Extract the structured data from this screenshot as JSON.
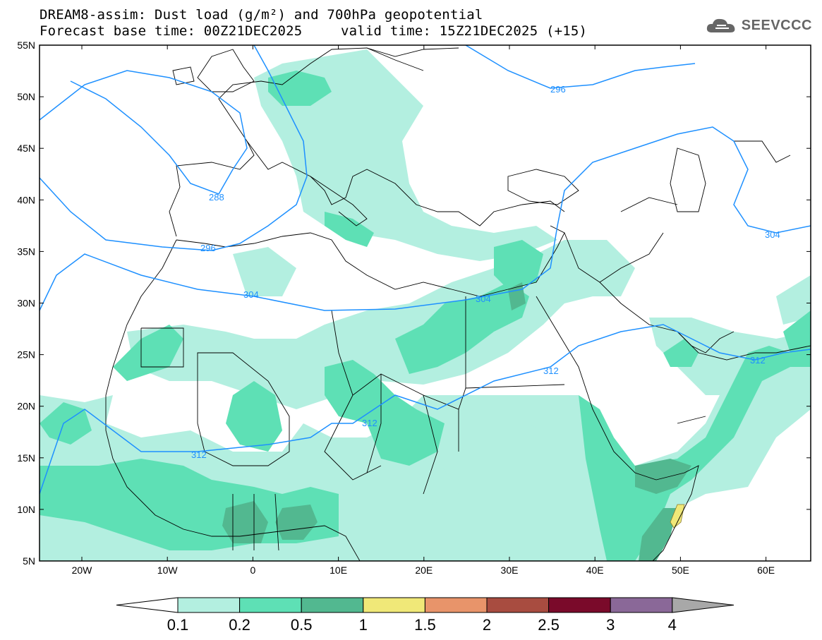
{
  "header": {
    "title_line1": "DREAM8-assim: Dust load (g/m²) and 700hPa geopotential",
    "title_line2_left": "Forecast base time: 00Z21DEC2025",
    "title_line2_right": "valid time: 15Z21DEC2025 (+15)",
    "logo_text": "SEEVCCC"
  },
  "map": {
    "lat_ticks": [
      "55N",
      "50N",
      "45N",
      "40N",
      "35N",
      "30N",
      "25N",
      "20N",
      "15N",
      "10N",
      "5N"
    ],
    "lon_ticks": [
      "20W",
      "10W",
      "0",
      "10E",
      "20E",
      "30E",
      "40E",
      "50E",
      "60E"
    ],
    "contour_labels": [
      "296",
      "288",
      "296",
      "304",
      "304",
      "312",
      "312",
      "312",
      "312",
      "304"
    ]
  },
  "colorbar": {
    "labels": [
      "0.1",
      "0.2",
      "0.5",
      "1",
      "1.5",
      "2",
      "2.5",
      "3",
      "4"
    ],
    "colors": [
      "#b3efe0",
      "#5ee0b5",
      "#52b890",
      "#f0e878",
      "#e8946a",
      "#a84c40",
      "#7a0a2a",
      "#8a6898",
      "#a8a8a8"
    ]
  }
}
